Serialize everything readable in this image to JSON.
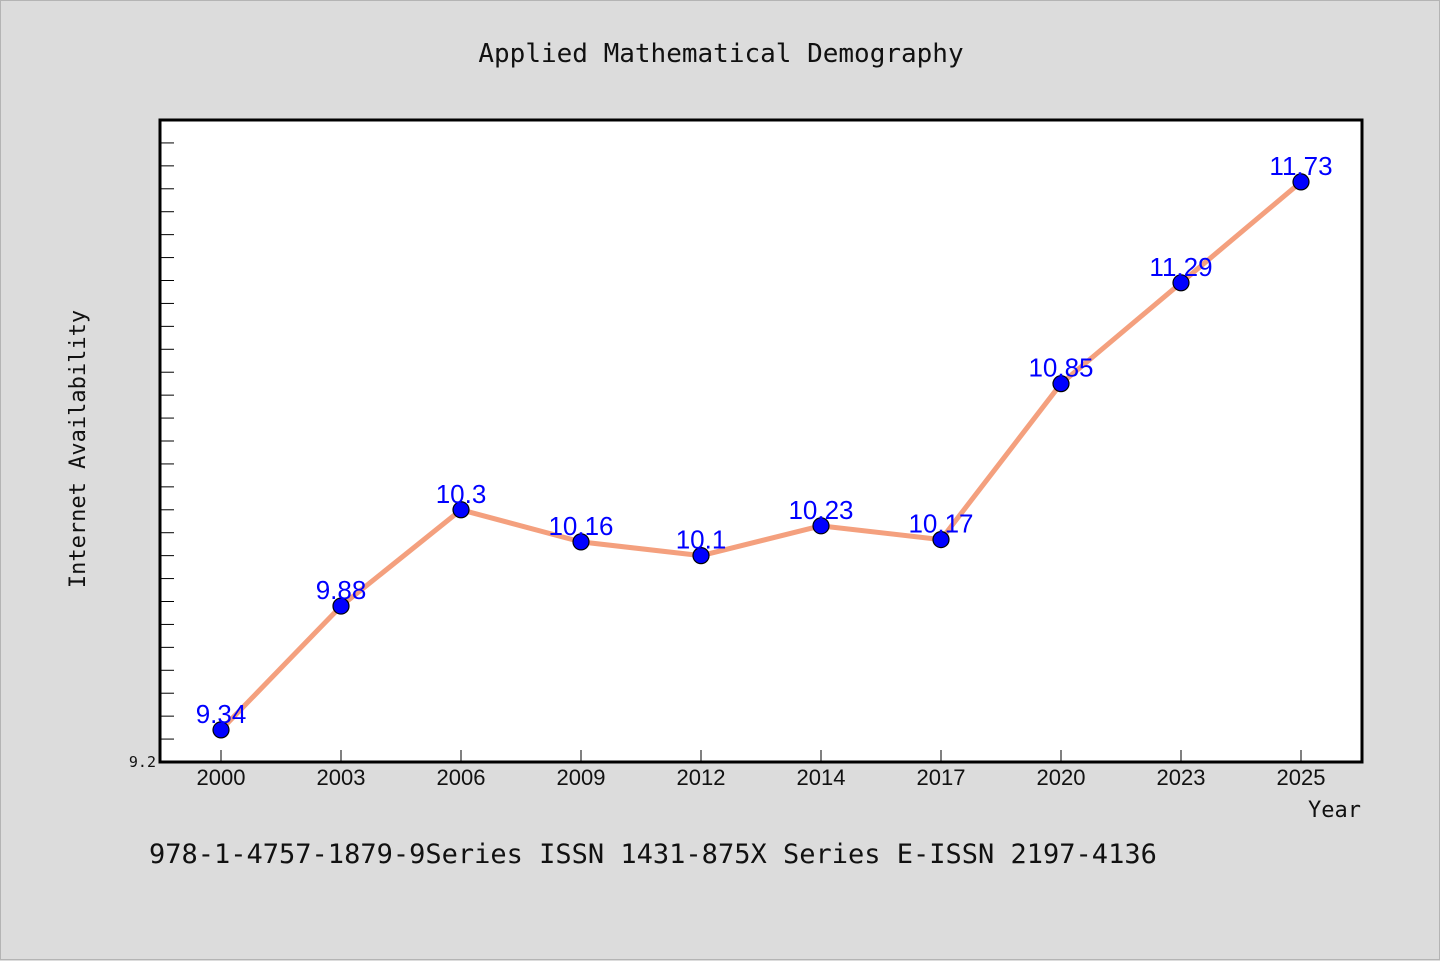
{
  "chart_data": {
    "type": "line",
    "title": "Applied Mathematical Demography",
    "xlabel": "Year",
    "ylabel": "Internet Availability",
    "categories": [
      "2000",
      "2003",
      "2006",
      "2009",
      "2012",
      "2014",
      "2017",
      "2020",
      "2023",
      "2025"
    ],
    "series": [
      {
        "values": [
          9.34,
          9.88,
          10.3,
          10.16,
          10.1,
          10.23,
          10.17,
          10.85,
          11.29,
          11.73
        ],
        "line_color": "#f4a07e",
        "marker_color": "#0000ff",
        "label_color": "#0000ff"
      }
    ],
    "ylim": [
      9.2,
      12.0
    ],
    "y_tick_labels": [
      "9.2"
    ],
    "grid": false,
    "legend": "none"
  },
  "footer": {
    "text": "978-1-4757-1879-9Series ISSN 1431-875X Series E-ISSN 2197-4136"
  },
  "colors": {
    "background": "#dcdcdc",
    "plot_background": "#ffffff",
    "axis": "#000000"
  }
}
